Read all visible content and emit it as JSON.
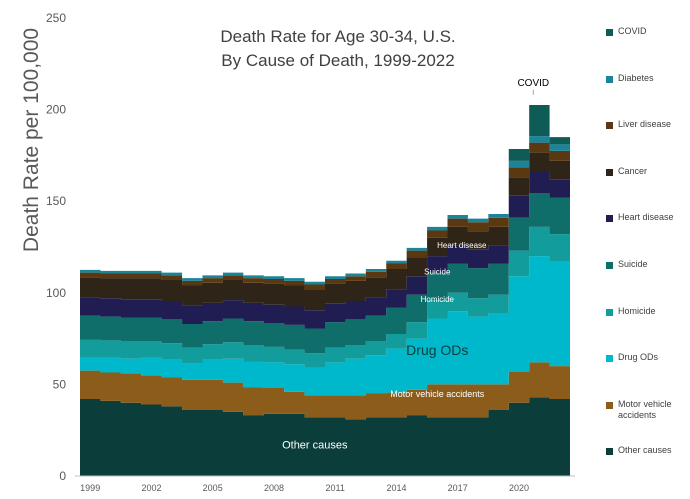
{
  "chart_data": {
    "type": "area",
    "stacked": true,
    "title": "Death Rate for Age 30-34, U.S.",
    "subtitle": "By Cause of Death, 1999-2022",
    "xlabel": "",
    "ylabel": "Death Rate per 100,000",
    "ylim": [
      0,
      250
    ],
    "yticks": [
      "0",
      "50",
      "100",
      "150",
      "200",
      "250"
    ],
    "x": [
      1999,
      2000,
      2001,
      2002,
      2003,
      2004,
      2005,
      2006,
      2007,
      2008,
      2009,
      2010,
      2011,
      2012,
      2013,
      2014,
      2015,
      2016,
      2017,
      2018,
      2019,
      2020,
      2021,
      2022
    ],
    "xtick_labels": [
      "1999",
      "2002",
      "2005",
      "2008",
      "2011",
      "2014",
      "2017",
      "2020"
    ],
    "xtick_years": [
      1999,
      2002,
      2005,
      2008,
      2011,
      2014,
      2017,
      2020
    ],
    "grid": false,
    "legend_position": "right",
    "series": [
      {
        "name": "Other causes",
        "color": "#0b3d3a",
        "values": [
          42,
          41,
          40,
          39,
          38,
          36,
          36,
          35,
          33,
          34,
          34,
          32,
          32,
          31,
          32,
          32,
          33,
          32,
          32,
          32,
          36,
          40,
          43,
          42
        ]
      },
      {
        "name": "Motor vehicle accidents",
        "color": "#8b5c1a",
        "values": [
          15.5,
          15.5,
          16,
          16,
          16,
          16.5,
          16.5,
          16,
          15.5,
          14,
          12,
          12,
          12,
          13,
          13,
          13.5,
          14,
          18,
          18,
          18,
          14,
          17,
          19,
          18
        ]
      },
      {
        "name": "Drug ODs",
        "color": "#00b8cc",
        "values": [
          7,
          8,
          8,
          9.5,
          9.5,
          9,
          11,
          13,
          14,
          14,
          15,
          15,
          18,
          20,
          21,
          24,
          28,
          36,
          40,
          37,
          39,
          52,
          58,
          57
        ]
      },
      {
        "name": "Homicide",
        "color": "#139c9c",
        "values": [
          10,
          9.5,
          9.5,
          9,
          9,
          8.5,
          8.5,
          9,
          9,
          8.5,
          8,
          8,
          8,
          7.5,
          7.5,
          8,
          9,
          10,
          10,
          10,
          10,
          14,
          16,
          15
        ]
      },
      {
        "name": "Suicide",
        "color": "#0f6e6a",
        "values": [
          13,
          13,
          13,
          13,
          13,
          13,
          12.5,
          13,
          13,
          13,
          13.5,
          13.5,
          14,
          14,
          14,
          14.5,
          15,
          15,
          16,
          16.5,
          17,
          18,
          18.5,
          20
        ]
      },
      {
        "name": "Heart disease",
        "color": "#1f1d52",
        "values": [
          10,
          10,
          10,
          10,
          10,
          10,
          10,
          10,
          10,
          10,
          10,
          10,
          10,
          10,
          10,
          10,
          10,
          9,
          10,
          10,
          10,
          12,
          12,
          10
        ]
      },
      {
        "name": "Cancer",
        "color": "#2e2417",
        "values": [
          11,
          11,
          11.5,
          11.5,
          11.5,
          11,
          11,
          11,
          11,
          11.5,
          11.5,
          11.5,
          11,
          11,
          11,
          11,
          10.5,
          10,
          10,
          10,
          10,
          10,
          10,
          10
        ]
      },
      {
        "name": "Liver disease",
        "color": "#5a3812",
        "values": [
          2.5,
          2.5,
          2.5,
          2.5,
          2.5,
          2.5,
          2.5,
          2.5,
          2.5,
          2.5,
          2.5,
          2.5,
          2.5,
          2.5,
          3,
          3,
          3.5,
          4,
          4.5,
          5,
          5,
          5.5,
          5.5,
          5.5
        ]
      },
      {
        "name": "Diabetes",
        "color": "#1b8499",
        "values": [
          1.5,
          1.5,
          1.5,
          1.5,
          1.5,
          1.5,
          1.5,
          1.5,
          1.5,
          1.5,
          1.5,
          1.5,
          1.5,
          1.5,
          1.5,
          1.5,
          1.5,
          2,
          2,
          2,
          2,
          3.5,
          3.5,
          3.5
        ]
      },
      {
        "name": "COVID",
        "color": "#0e5c55",
        "values": [
          0,
          0,
          0,
          0,
          0,
          0,
          0,
          0,
          0,
          0,
          0,
          0,
          0,
          0,
          0,
          0,
          0,
          0,
          0,
          0,
          0,
          6.5,
          17,
          4
        ]
      }
    ],
    "annotations": [
      {
        "text": "Other causes",
        "x": 2010,
        "y": 15,
        "color": "#ffffff",
        "size": 11
      },
      {
        "text": "Motor vehicle accidents",
        "x": 2016,
        "y": 43,
        "color": "#ffffff",
        "size": 9
      },
      {
        "text": "Drug ODs",
        "x": 2016,
        "y": 66,
        "color": "#0b3d3a",
        "size": 14
      },
      {
        "text": "Homicide",
        "x": 2016,
        "y": 95,
        "color": "#ffffff",
        "size": 8
      },
      {
        "text": "Suicide",
        "x": 2016,
        "y": 110,
        "color": "#ffffff",
        "size": 8
      },
      {
        "text": "Heart disease",
        "x": 2017.2,
        "y": 124.5,
        "color": "#ffffff",
        "size": 8
      },
      {
        "text": "COVID",
        "x": 2020.7,
        "y": 213,
        "color": "#000000",
        "size": 10,
        "pointer_to": 208
      }
    ]
  }
}
